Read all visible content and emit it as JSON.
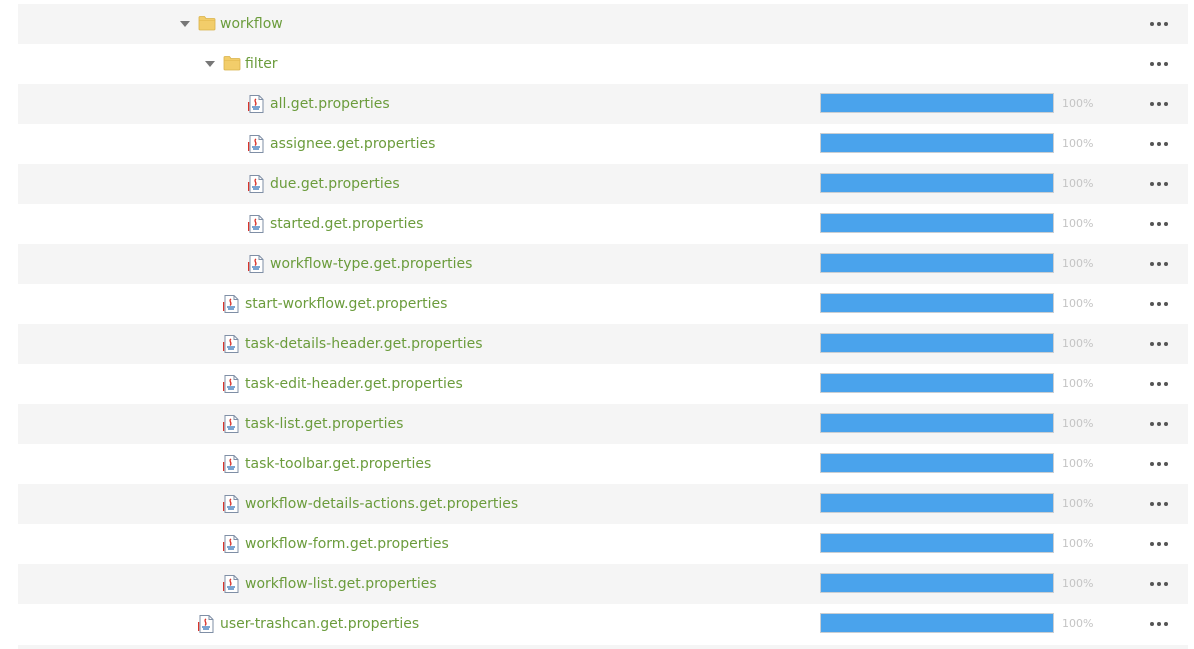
{
  "colors": {
    "name_text": "#6b9c3c",
    "progress_fill": "#4aa3ec",
    "percent_text": "#c4c4c4",
    "row_alt_bg": "#f5f5f5",
    "folder_icon": "#f2cd6a",
    "menu_dots": "#555555"
  },
  "icons": {
    "expanded_toggle": "caret-down-icon",
    "folder": "folder-icon",
    "file": "properties-file-icon",
    "row_menu": "more-actions-icon"
  },
  "tree": {
    "rows": [
      {
        "label": "workflow",
        "kind": "folder",
        "depth": 0,
        "expanded": true
      },
      {
        "label": "filter",
        "kind": "folder",
        "depth": 1,
        "expanded": true
      },
      {
        "label": "all.get.properties",
        "kind": "file",
        "depth": 2,
        "progress": 1.0,
        "percent_label": "100%"
      },
      {
        "label": "assignee.get.properties",
        "kind": "file",
        "depth": 2,
        "progress": 1.0,
        "percent_label": "100%"
      },
      {
        "label": "due.get.properties",
        "kind": "file",
        "depth": 2,
        "progress": 1.0,
        "percent_label": "100%"
      },
      {
        "label": "started.get.properties",
        "kind": "file",
        "depth": 2,
        "progress": 1.0,
        "percent_label": "100%"
      },
      {
        "label": "workflow-type.get.properties",
        "kind": "file",
        "depth": 2,
        "progress": 1.0,
        "percent_label": "100%"
      },
      {
        "label": "start-workflow.get.properties",
        "kind": "file",
        "depth": 1,
        "progress": 1.0,
        "percent_label": "100%"
      },
      {
        "label": "task-details-header.get.properties",
        "kind": "file",
        "depth": 1,
        "progress": 1.0,
        "percent_label": "100%"
      },
      {
        "label": "task-edit-header.get.properties",
        "kind": "file",
        "depth": 1,
        "progress": 1.0,
        "percent_label": "100%"
      },
      {
        "label": "task-list.get.properties",
        "kind": "file",
        "depth": 1,
        "progress": 1.0,
        "percent_label": "100%"
      },
      {
        "label": "task-toolbar.get.properties",
        "kind": "file",
        "depth": 1,
        "progress": 1.0,
        "percent_label": "100%"
      },
      {
        "label": "workflow-details-actions.get.properties",
        "kind": "file",
        "depth": 1,
        "progress": 1.0,
        "percent_label": "100%"
      },
      {
        "label": "workflow-form.get.properties",
        "kind": "file",
        "depth": 1,
        "progress": 1.0,
        "percent_label": "100%"
      },
      {
        "label": "workflow-list.get.properties",
        "kind": "file",
        "depth": 1,
        "progress": 1.0,
        "percent_label": "100%"
      },
      {
        "label": "user-trashcan.get.properties",
        "kind": "file",
        "depth": 0,
        "progress": 1.0,
        "percent_label": "100%"
      }
    ]
  }
}
